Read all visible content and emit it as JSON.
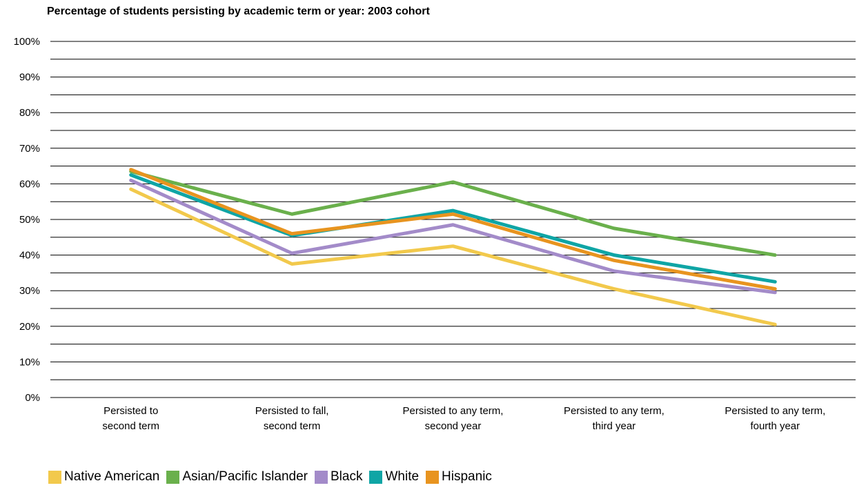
{
  "chart_data": {
    "type": "line",
    "title": "Percentage of students persisting by academic term or year: 2003 cohort",
    "xlabel": "",
    "ylabel": "",
    "ylim": [
      0,
      100
    ],
    "y_ticks": [
      "0%",
      "10%",
      "20%",
      "30%",
      "40%",
      "50%",
      "60%",
      "70%",
      "80%",
      "90%",
      "100%"
    ],
    "categories": [
      [
        "Persisted to",
        "second term"
      ],
      [
        "Persisted to fall,",
        "second term"
      ],
      [
        "Persisted to any term,",
        "second year"
      ],
      [
        "Persisted to any term,",
        "third year"
      ],
      [
        "Persisted to any term,",
        "fourth year"
      ]
    ],
    "grid": "horizontal, every 5%",
    "legend_position": "bottom",
    "series": [
      {
        "name": "Native American",
        "color": "#F2C94C",
        "values": [
          58.5,
          37.5,
          42.5,
          30.5,
          20.5
        ]
      },
      {
        "name": "Asian/Pacific Islander",
        "color": "#6AB04C",
        "values": [
          63.5,
          51.5,
          60.5,
          47.5,
          40.0
        ]
      },
      {
        "name": "Black",
        "color": "#A38BC9",
        "values": [
          61.0,
          40.5,
          48.5,
          35.5,
          29.5
        ]
      },
      {
        "name": "White",
        "color": "#0FA5A5",
        "values": [
          62.5,
          45.5,
          52.5,
          40.0,
          32.5
        ]
      },
      {
        "name": "Hispanic",
        "color": "#E8941F",
        "values": [
          64.0,
          46.0,
          51.5,
          38.5,
          30.5
        ]
      }
    ]
  }
}
